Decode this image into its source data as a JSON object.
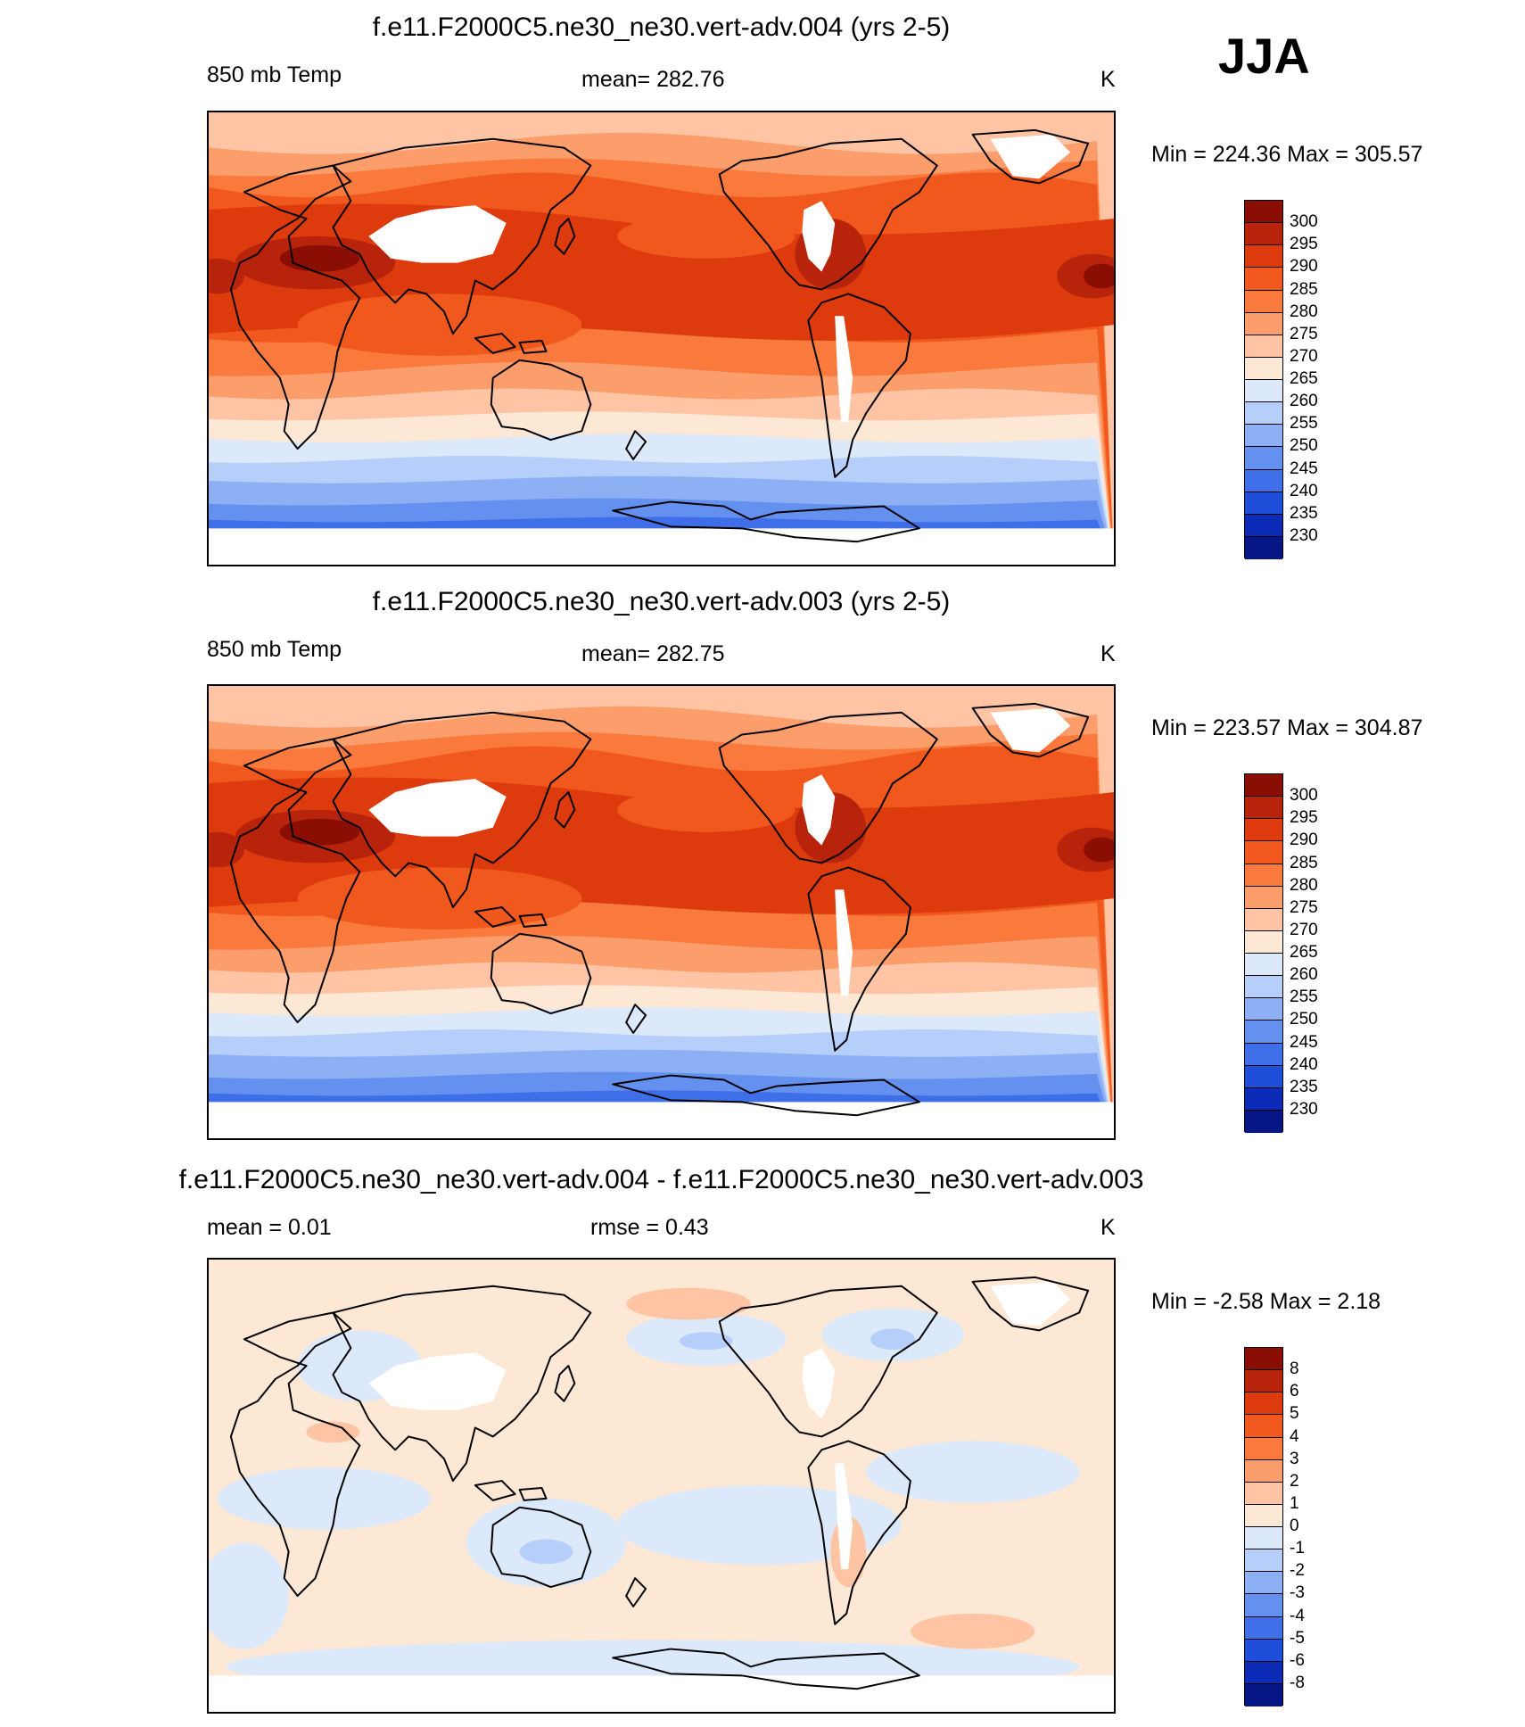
{
  "season": "JJA",
  "panels": [
    {
      "title": "f.e11.F2000C5.ne30_ne30.vert-adv.004 (yrs 2-5)",
      "left_label": "850 mb Temp",
      "center_label": "mean= 282.76",
      "units": "K",
      "minmax": "Min = 224.36 Max = 305.57",
      "colorbar_labels": [
        "300",
        "295",
        "290",
        "285",
        "280",
        "275",
        "270",
        "265",
        "260",
        "255",
        "250",
        "245",
        "240",
        "235",
        "230"
      ],
      "colors": [
        "#8a0e04",
        "#b8230c",
        "#dd3b0e",
        "#f0581d",
        "#fa7a3e",
        "#fc9d6c",
        "#fec4a3",
        "#fde8d6",
        "#dbe9fb",
        "#b5cefa",
        "#8db0f5",
        "#6490ef",
        "#3e6ee8",
        "#1f4fd8",
        "#0c2cb8",
        "#061684"
      ],
      "map_type": "temperature"
    },
    {
      "title": "f.e11.F2000C5.ne30_ne30.vert-adv.003 (yrs 2-5)",
      "left_label": "850 mb Temp",
      "center_label": "mean= 282.75",
      "units": "K",
      "minmax": "Min = 223.57 Max = 304.87",
      "colorbar_labels": [
        "300",
        "295",
        "290",
        "285",
        "280",
        "275",
        "270",
        "265",
        "260",
        "255",
        "250",
        "245",
        "240",
        "235",
        "230"
      ],
      "colors": [
        "#8a0e04",
        "#b8230c",
        "#dd3b0e",
        "#f0581d",
        "#fa7a3e",
        "#fc9d6c",
        "#fec4a3",
        "#fde8d6",
        "#dbe9fb",
        "#b5cefa",
        "#8db0f5",
        "#6490ef",
        "#3e6ee8",
        "#1f4fd8",
        "#0c2cb8",
        "#061684"
      ],
      "map_type": "temperature"
    },
    {
      "title": "f.e11.F2000C5.ne30_ne30.vert-adv.004 - f.e11.F2000C5.ne30_ne30.vert-adv.003",
      "left_label": "mean =   0.01",
      "center_label": "rmse =   0.43",
      "units": "K",
      "minmax": "Min =  -2.58 Max =   2.18",
      "colorbar_labels": [
        "8",
        "6",
        "5",
        "4",
        "3",
        "2",
        "1",
        "0",
        "-1",
        "-2",
        "-3",
        "-4",
        "-5",
        "-6",
        "-8"
      ],
      "colors": [
        "#8a0e04",
        "#b8230c",
        "#dd3b0e",
        "#f0581d",
        "#fa7a3e",
        "#fc9d6c",
        "#fec4a3",
        "#fde8d6",
        "#dbe9fb",
        "#b5cefa",
        "#8db0f5",
        "#6490ef",
        "#3e6ee8",
        "#1f4fd8",
        "#0c2cb8",
        "#061684"
      ],
      "map_type": "difference"
    }
  ]
}
